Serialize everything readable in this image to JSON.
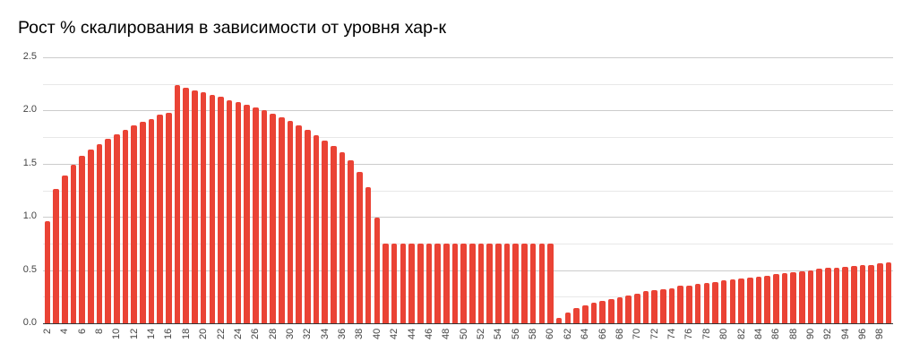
{
  "title": "Рост % скалирования в зависимости от уровня хар-к",
  "colors": {
    "bar": "#ea4335",
    "major_grid": "#cccccc",
    "minor_grid": "#e8e8e8",
    "axis": "#333333",
    "label": "#444444"
  },
  "chart_data": {
    "type": "bar",
    "title": "Рост % скалирования в зависимости от уровня хар-к",
    "xlabel": "",
    "ylabel": "",
    "ylim": [
      0,
      2.5
    ],
    "yticks": [
      "0.0",
      "0.5",
      "1.0",
      "1.5",
      "2.0",
      "2.5"
    ],
    "grid": true,
    "legend": "none",
    "categories": [
      2,
      3,
      4,
      5,
      6,
      7,
      8,
      9,
      10,
      11,
      12,
      13,
      14,
      15,
      16,
      17,
      18,
      19,
      20,
      21,
      22,
      23,
      24,
      25,
      26,
      27,
      28,
      29,
      30,
      31,
      32,
      33,
      34,
      35,
      36,
      37,
      38,
      39,
      40,
      41,
      42,
      43,
      44,
      45,
      46,
      47,
      48,
      49,
      50,
      51,
      52,
      53,
      54,
      55,
      56,
      57,
      58,
      59,
      60,
      61,
      62,
      63,
      64,
      65,
      66,
      67,
      68,
      69,
      70,
      71,
      72,
      73,
      74,
      75,
      76,
      77,
      78,
      79,
      80,
      81,
      82,
      83,
      84,
      85,
      86,
      87,
      88,
      89,
      90,
      91,
      92,
      93,
      94,
      95,
      96,
      97,
      98,
      99
    ],
    "xtick_labels": [
      "2",
      "4",
      "6",
      "8",
      "10",
      "12",
      "14",
      "16",
      "18",
      "20",
      "22",
      "24",
      "26",
      "28",
      "30",
      "32",
      "34",
      "36",
      "38",
      "40",
      "42",
      "44",
      "46",
      "48",
      "50",
      "52",
      "54",
      "56",
      "58",
      "60",
      "62",
      "64",
      "66",
      "68",
      "70",
      "72",
      "74",
      "76",
      "78",
      "80",
      "82",
      "84",
      "86",
      "88",
      "90",
      "92",
      "94",
      "96",
      "98"
    ],
    "values": [
      0.96,
      1.26,
      1.39,
      1.49,
      1.57,
      1.63,
      1.68,
      1.73,
      1.78,
      1.82,
      1.86,
      1.89,
      1.92,
      1.96,
      1.98,
      2.24,
      2.21,
      2.19,
      2.17,
      2.15,
      2.13,
      2.1,
      2.08,
      2.05,
      2.03,
      2.0,
      1.97,
      1.94,
      1.9,
      1.86,
      1.82,
      1.77,
      1.72,
      1.67,
      1.61,
      1.53,
      1.42,
      1.28,
      0.99,
      0.75,
      0.75,
      0.75,
      0.75,
      0.75,
      0.75,
      0.75,
      0.75,
      0.75,
      0.75,
      0.75,
      0.75,
      0.75,
      0.75,
      0.75,
      0.75,
      0.75,
      0.75,
      0.75,
      0.75,
      0.05,
      0.1,
      0.14,
      0.17,
      0.19,
      0.21,
      0.23,
      0.24,
      0.26,
      0.28,
      0.3,
      0.31,
      0.32,
      0.33,
      0.35,
      0.35,
      0.37,
      0.38,
      0.39,
      0.4,
      0.41,
      0.42,
      0.43,
      0.44,
      0.45,
      0.46,
      0.47,
      0.48,
      0.49,
      0.5,
      0.51,
      0.52,
      0.52,
      0.53,
      0.54,
      0.55,
      0.55,
      0.56,
      0.57
    ]
  }
}
